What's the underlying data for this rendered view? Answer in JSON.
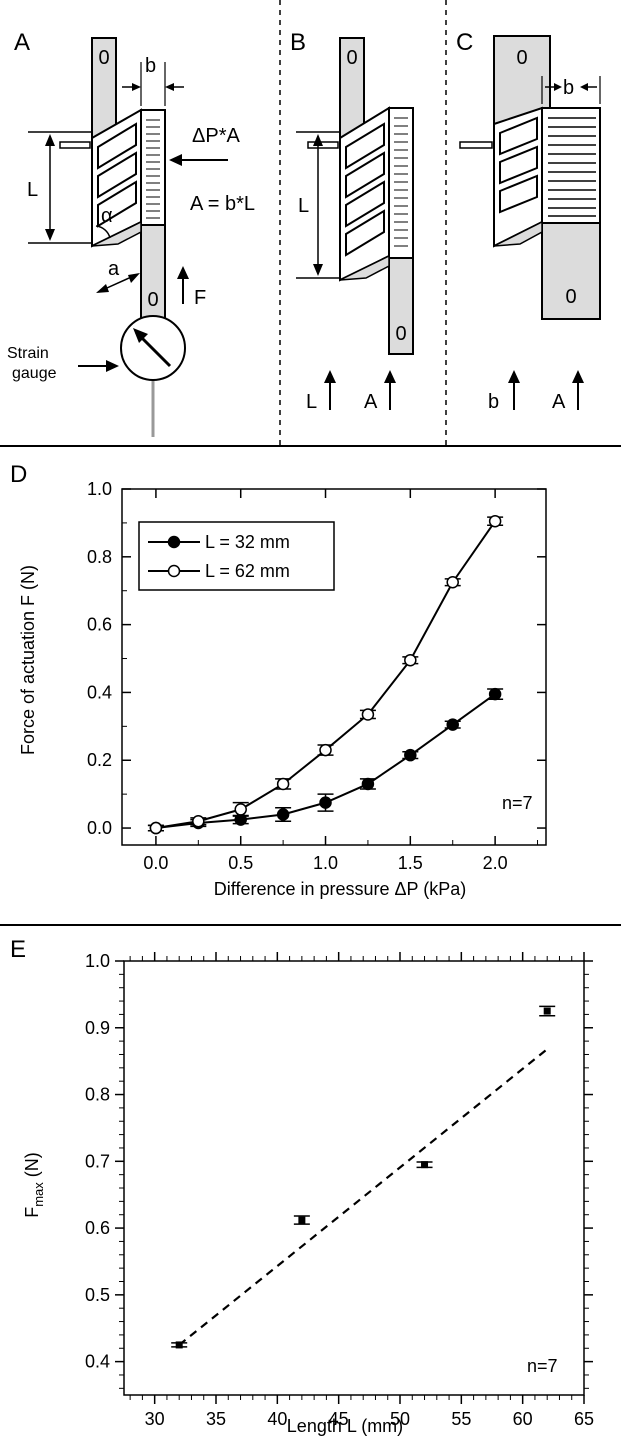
{
  "panels": {
    "A": {
      "letter": "A",
      "b_label": "b",
      "force_label": "ΔP*A",
      "area_eq": "A = b*L",
      "L_label": "L",
      "alpha_label": "α",
      "a_label": "a",
      "F_label": "F",
      "zero_top": "0",
      "zero_bottom": "0",
      "gauge_label_1": "Strain",
      "gauge_label_2": "gauge"
    },
    "B": {
      "letter": "B",
      "L_label": "L",
      "zero_top": "0",
      "zero_bottom": "0",
      "arrow_label_1": "L",
      "arrow_label_2": "A"
    },
    "C": {
      "letter": "C",
      "b_label": "b",
      "zero_top": "0",
      "zero_bottom": "0",
      "arrow_label_1": "b",
      "arrow_label_2": "A"
    }
  },
  "chart_data": [
    {
      "panel": "D",
      "type": "line",
      "xlabel": "Difference in pressure ΔP (kPa)",
      "ylabel": "Force of actuation F (N)",
      "xlim": [
        -0.2,
        2.3
      ],
      "ylim": [
        -0.05,
        1.0
      ],
      "xticks": [
        "0.0",
        "0.5",
        "1.0",
        "1.5",
        "2.0"
      ],
      "yticks": [
        "0.0",
        "0.2",
        "0.4",
        "0.6",
        "0.8",
        "1.0"
      ],
      "annotation": "n=7",
      "legend_position": "top-left",
      "series": [
        {
          "name": "L = 32 mm",
          "marker": "filled-circle",
          "x": [
            0.0,
            0.25,
            0.5,
            0.75,
            1.0,
            1.25,
            1.5,
            1.75,
            2.0
          ],
          "y": [
            0.0,
            0.015,
            0.025,
            0.04,
            0.075,
            0.13,
            0.215,
            0.305,
            0.395
          ],
          "err": [
            0.008,
            0.01,
            0.012,
            0.02,
            0.025,
            0.015,
            0.01,
            0.01,
            0.015
          ]
        },
        {
          "name": "L = 62 mm",
          "marker": "open-circle",
          "x": [
            0.0,
            0.25,
            0.5,
            0.75,
            1.0,
            1.25,
            1.5,
            1.75,
            2.0
          ],
          "y": [
            0.0,
            0.02,
            0.055,
            0.13,
            0.23,
            0.335,
            0.495,
            0.725,
            0.905
          ],
          "err": [
            0.008,
            0.01,
            0.02,
            0.015,
            0.015,
            0.012,
            0.01,
            0.01,
            0.012
          ]
        }
      ]
    },
    {
      "panel": "E",
      "type": "scatter",
      "xlabel": "Length L (mm)",
      "ylabel_main": "F",
      "ylabel_sub": "max",
      "ylabel_unit": " (N)",
      "xlim": [
        27.5,
        65
      ],
      "ylim": [
        0.35,
        1.0
      ],
      "xticks": [
        "30",
        "35",
        "40",
        "45",
        "50",
        "55",
        "60",
        "65"
      ],
      "yticks": [
        "0.4",
        "0.5",
        "0.6",
        "0.7",
        "0.8",
        "0.9",
        "1.0"
      ],
      "annotation": "n=7",
      "points": {
        "x": [
          32,
          42,
          52,
          62
        ],
        "y": [
          0.425,
          0.612,
          0.695,
          0.925
        ],
        "err": [
          0.003,
          0.006,
          0.004,
          0.007
        ]
      },
      "fit_line": {
        "x": [
          32,
          62
        ],
        "y": [
          0.425,
          0.868
        ],
        "style": "dashed"
      }
    }
  ]
}
